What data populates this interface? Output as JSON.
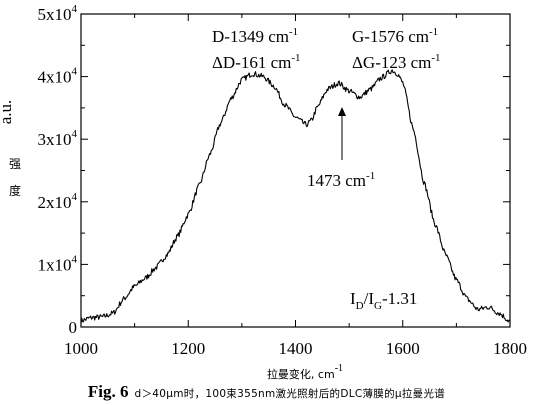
{
  "chart_data": {
    "type": "line",
    "xlabel": "拉曼变化, cm",
    "xlabel_sup": "-1",
    "ylabel_unit": "a.u.",
    "ylabel_cn_1": "强",
    "ylabel_cn_2": "度",
    "xlim": [
      1000,
      1800
    ],
    "ylim": [
      0,
      50000
    ],
    "xticks": [
      1000,
      1200,
      1400,
      1600,
      1800
    ],
    "xtick_labels": [
      "1000",
      "1200",
      "1400",
      "1600",
      "1800"
    ],
    "yticks": [
      0,
      10000,
      20000,
      30000,
      40000,
      50000
    ],
    "ytick_labels": [
      {
        "base": "0",
        "exp": ""
      },
      {
        "base": "1x10",
        "exp": "4"
      },
      {
        "base": "2x10",
        "exp": "4"
      },
      {
        "base": "3x10",
        "exp": "4"
      },
      {
        "base": "4x10",
        "exp": "4"
      },
      {
        "base": "5x10",
        "exp": "4"
      }
    ],
    "series": [
      {
        "x": [
          1000,
          1020,
          1040,
          1060,
          1080,
          1100,
          1120,
          1140,
          1160,
          1180,
          1200,
          1220,
          1240,
          1260,
          1280,
          1300,
          1320,
          1340,
          1360,
          1380,
          1400,
          1420,
          1430,
          1440,
          1460,
          1480,
          1500,
          1520,
          1540,
          1560,
          1580,
          1590,
          1600,
          1620,
          1640,
          1660,
          1680,
          1700,
          1720,
          1740,
          1760,
          1780,
          1800
        ],
        "y": [
          1000,
          1500,
          1600,
          2200,
          4500,
          6500,
          7800,
          9500,
          11500,
          14500,
          18000,
          22500,
          27500,
          32500,
          36500,
          39500,
          40500,
          40000,
          38500,
          35500,
          33500,
          32300,
          33000,
          35000,
          38000,
          39000,
          37700,
          36700,
          38000,
          39800,
          41000,
          40500,
          39000,
          31500,
          23000,
          16500,
          11500,
          7500,
          4500,
          2800,
          3200,
          2200,
          900
        ]
      }
    ],
    "annotations": {
      "d_line1": "D-1349 cm",
      "d_line1_sup": "-1",
      "d_line2": "ΔD-161 cm",
      "d_line2_sup": "-1",
      "g_line1": "G-1576 cm",
      "g_line1_sup": "-1",
      "g_line2": "ΔG-123 cm",
      "g_line2_sup": "-1",
      "mid_label": "1473 cm",
      "mid_label_sup": "-1",
      "mid_arrow_x": 1473,
      "ratio_I": "I",
      "ratio_D": "D",
      "ratio_slash": "/I",
      "ratio_G": "G",
      "ratio_value": "-1.31"
    }
  },
  "caption": {
    "fig_num": "Fig. 6",
    "text": "d＞40μm时，100束355nm激光照射后的DLC薄膜的μ拉曼光谱"
  }
}
